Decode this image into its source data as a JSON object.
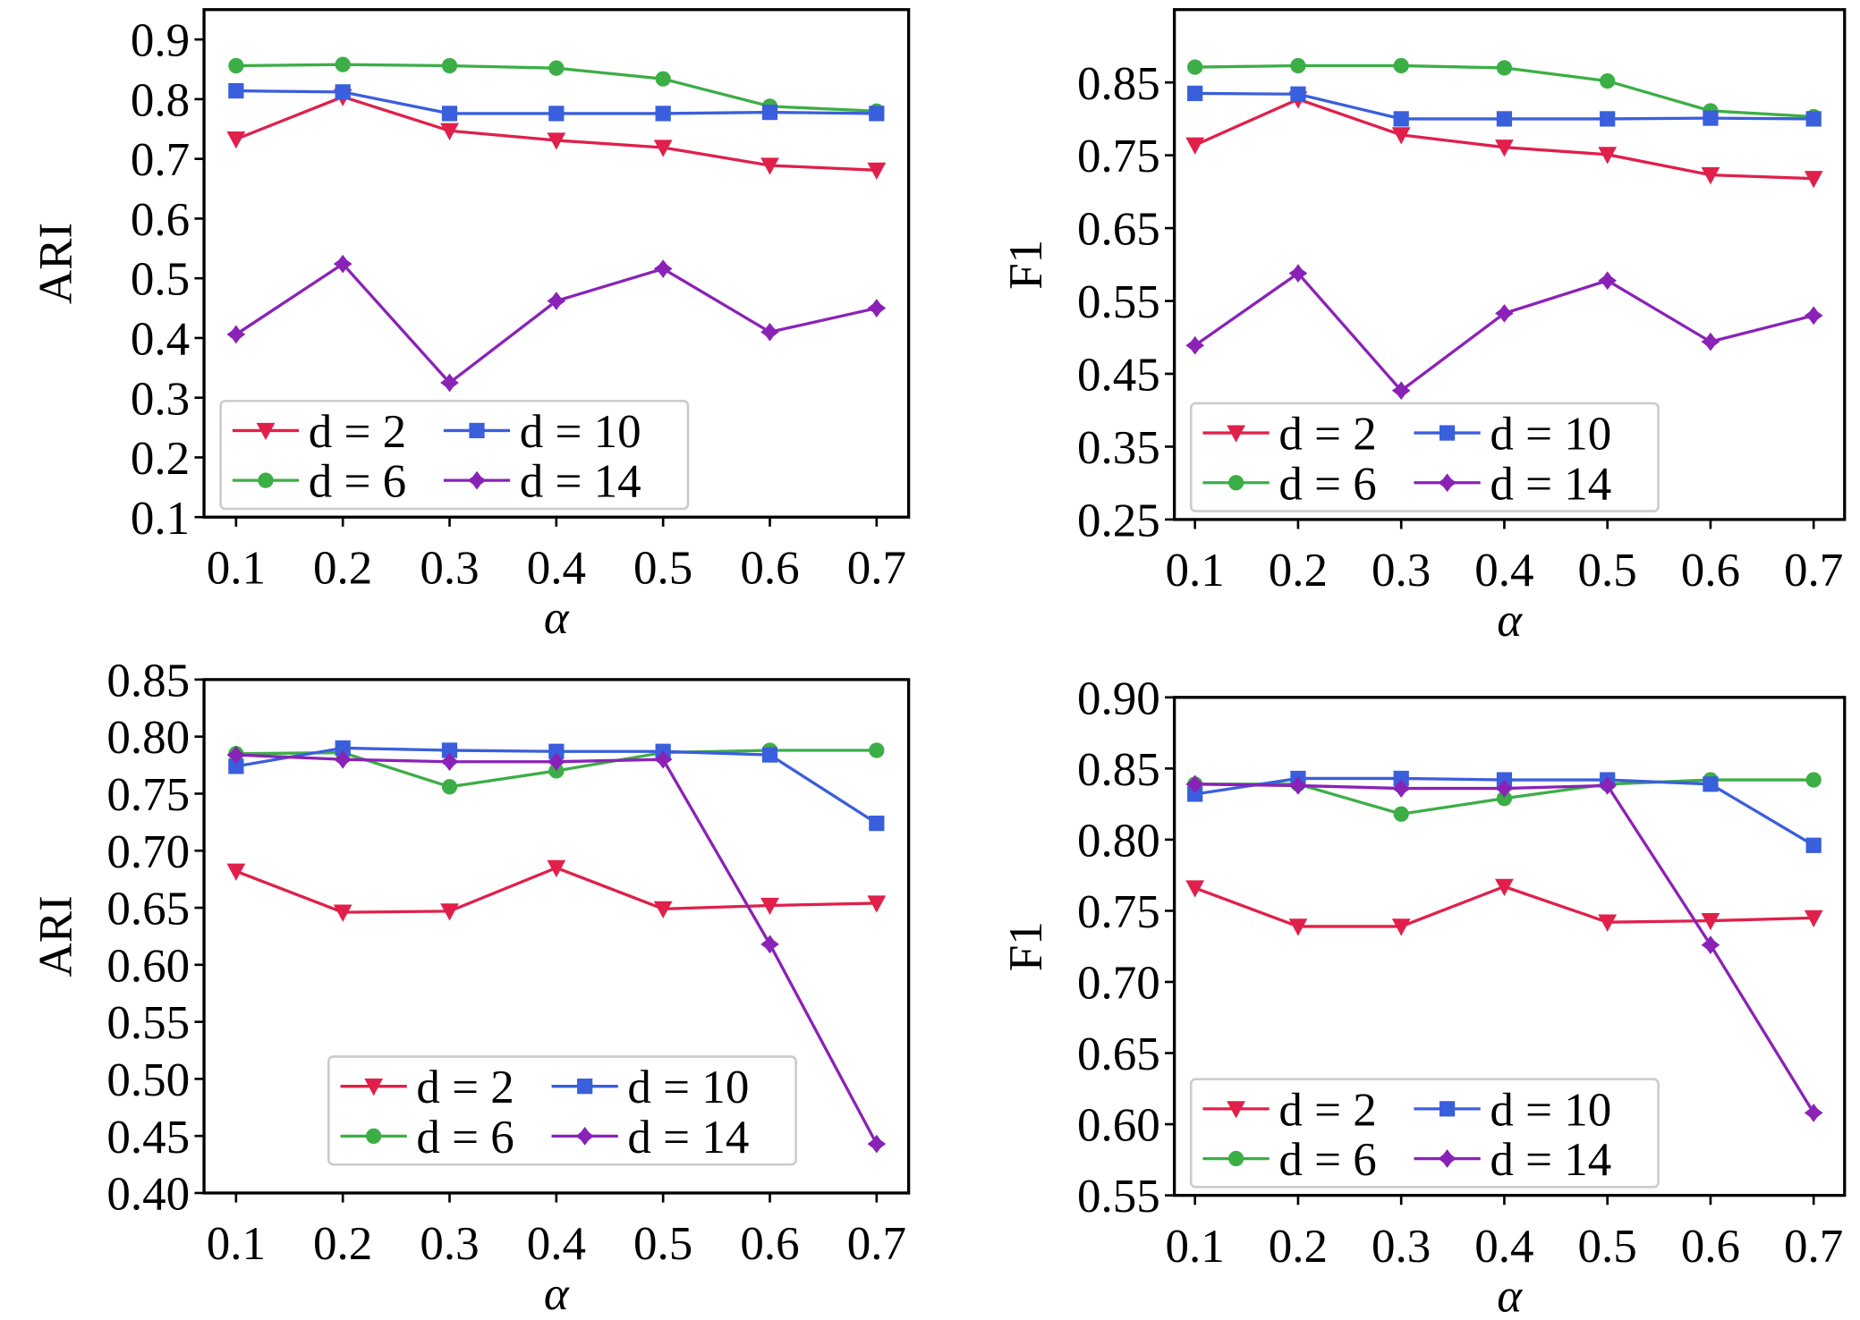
{
  "chart_data": [
    {
      "type": "line",
      "xlabel": "α",
      "ylabel": "ARI",
      "x": [
        0.1,
        0.2,
        0.3,
        0.4,
        0.5,
        0.6,
        0.7
      ],
      "xlim": [
        0.07,
        0.73
      ],
      "xticks": [
        0.1,
        0.2,
        0.3,
        0.4,
        0.5,
        0.6,
        0.7
      ],
      "ylim": [
        0.1,
        0.95
      ],
      "yticks": [
        0.1,
        0.2,
        0.3,
        0.4,
        0.5,
        0.6,
        0.7,
        0.8,
        0.9
      ],
      "grid": false,
      "legend": "lower left",
      "series": [
        {
          "name": "d = 2",
          "color": "#e0204a",
          "marker": "triangle-down",
          "values": [
            0.733,
            0.804,
            0.747,
            0.731,
            0.719,
            0.689,
            0.681
          ]
        },
        {
          "name": "d = 6",
          "color": "#3cae46",
          "marker": "circle",
          "values": [
            0.856,
            0.858,
            0.856,
            0.852,
            0.834,
            0.788,
            0.78
          ]
        },
        {
          "name": "d = 10",
          "color": "#3a5fdc",
          "marker": "square",
          "values": [
            0.814,
            0.812,
            0.776,
            0.776,
            0.776,
            0.778,
            0.776
          ]
        },
        {
          "name": "d = 14",
          "color": "#8a22b8",
          "marker": "diamond",
          "values": [
            0.406,
            0.524,
            0.325,
            0.462,
            0.516,
            0.41,
            0.45
          ]
        }
      ]
    },
    {
      "type": "line",
      "xlabel": "α",
      "ylabel": "F1",
      "x": [
        0.1,
        0.2,
        0.3,
        0.4,
        0.5,
        0.6,
        0.7
      ],
      "xlim": [
        0.08,
        0.73
      ],
      "xticks": [
        0.1,
        0.2,
        0.3,
        0.4,
        0.5,
        0.6,
        0.7
      ],
      "ylim": [
        0.25,
        0.95
      ],
      "yticks": [
        0.25,
        0.35,
        0.45,
        0.55,
        0.65,
        0.75,
        0.85
      ],
      "grid": false,
      "legend": "lower left",
      "series": [
        {
          "name": "d = 2",
          "color": "#e0204a",
          "marker": "triangle-down",
          "values": [
            0.764,
            0.827,
            0.778,
            0.761,
            0.751,
            0.723,
            0.718
          ]
        },
        {
          "name": "d = 6",
          "color": "#3cae46",
          "marker": "circle",
          "values": [
            0.871,
            0.873,
            0.873,
            0.87,
            0.852,
            0.811,
            0.803
          ]
        },
        {
          "name": "d = 10",
          "color": "#3a5fdc",
          "marker": "square",
          "values": [
            0.835,
            0.834,
            0.8,
            0.8,
            0.8,
            0.801,
            0.8
          ]
        },
        {
          "name": "d = 14",
          "color": "#8a22b8",
          "marker": "diamond",
          "values": [
            0.489,
            0.588,
            0.427,
            0.533,
            0.578,
            0.494,
            0.53
          ]
        }
      ]
    },
    {
      "type": "line",
      "xlabel": "α",
      "ylabel": "ARI",
      "x": [
        0.1,
        0.2,
        0.3,
        0.4,
        0.5,
        0.6,
        0.7
      ],
      "xlim": [
        0.07,
        0.73
      ],
      "xticks": [
        0.1,
        0.2,
        0.3,
        0.4,
        0.5,
        0.6,
        0.7
      ],
      "ylim": [
        0.4,
        0.85
      ],
      "yticks": [
        {
          "value": 0.4,
          "label": "0.40"
        },
        0.45,
        {
          "value": 0.5,
          "label": "0.50"
        },
        0.55,
        {
          "value": 0.6,
          "label": "0.60"
        },
        0.65,
        {
          "value": 0.7,
          "label": "0.70"
        },
        0.75,
        {
          "value": 0.8,
          "label": "0.80"
        },
        0.85
      ],
      "grid": false,
      "legend": "lower center",
      "series": [
        {
          "name": "d = 2",
          "color": "#e0204a",
          "marker": "triangle-down",
          "values": [
            0.682,
            0.646,
            0.647,
            0.685,
            0.649,
            0.652,
            0.654
          ]
        },
        {
          "name": "d = 6",
          "color": "#3cae46",
          "marker": "circle",
          "values": [
            0.785,
            0.786,
            0.756,
            0.77,
            0.786,
            0.788,
            0.788
          ]
        },
        {
          "name": "d = 10",
          "color": "#3a5fdc",
          "marker": "square",
          "values": [
            0.774,
            0.79,
            0.788,
            0.787,
            0.787,
            0.784,
            0.724
          ]
        },
        {
          "name": "d = 14",
          "color": "#8a22b8",
          "marker": "diamond",
          "values": [
            0.784,
            0.78,
            0.778,
            0.778,
            0.78,
            0.618,
            0.443
          ]
        }
      ]
    },
    {
      "type": "line",
      "xlabel": "α",
      "ylabel": "F1",
      "x": [
        0.1,
        0.2,
        0.3,
        0.4,
        0.5,
        0.6,
        0.7
      ],
      "xlim": [
        0.08,
        0.73
      ],
      "xticks": [
        0.1,
        0.2,
        0.3,
        0.4,
        0.5,
        0.6,
        0.7
      ],
      "ylim": [
        0.55,
        0.9
      ],
      "yticks": [
        0.55,
        {
          "value": 0.6,
          "label": "0.60"
        },
        0.65,
        {
          "value": 0.7,
          "label": "0.70"
        },
        0.75,
        {
          "value": 0.8,
          "label": "0.80"
        },
        0.85,
        {
          "value": 0.9,
          "label": "0.90"
        }
      ],
      "grid": false,
      "legend": "lower left",
      "series": [
        {
          "name": "d = 2",
          "color": "#e0204a",
          "marker": "triangle-down",
          "values": [
            0.766,
            0.739,
            0.739,
            0.767,
            0.742,
            0.743,
            0.745
          ]
        },
        {
          "name": "d = 6",
          "color": "#3cae46",
          "marker": "circle",
          "values": [
            0.839,
            0.839,
            0.818,
            0.829,
            0.839,
            0.842,
            0.842
          ]
        },
        {
          "name": "d = 10",
          "color": "#3a5fdc",
          "marker": "square",
          "values": [
            0.832,
            0.843,
            0.843,
            0.842,
            0.842,
            0.839,
            0.796
          ]
        },
        {
          "name": "d = 14",
          "color": "#8a22b8",
          "marker": "diamond",
          "values": [
            0.839,
            0.838,
            0.836,
            0.836,
            0.838,
            0.726,
            0.608
          ]
        }
      ]
    }
  ]
}
